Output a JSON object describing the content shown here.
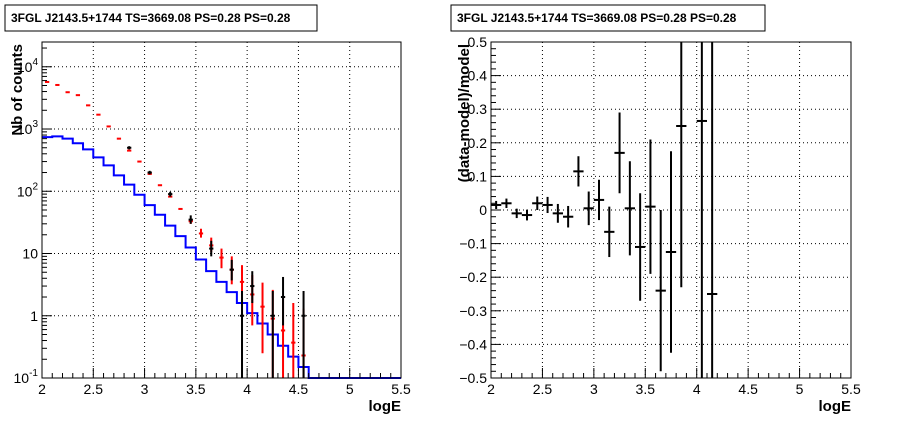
{
  "chart_data": [
    {
      "type": "line",
      "title": "3FGL J2143.5+1744 TS=3669.08 PS=0.28 PS=0.28",
      "xlabel": "logE",
      "ylabel": "Nb of counts",
      "xlim": [
        2,
        5.5
      ],
      "ylim": [
        0.1,
        25000
      ],
      "yscale": "log",
      "grid": true,
      "x_ticks": [
        "2",
        "2.5",
        "3",
        "3.5",
        "4",
        "4.5",
        "5",
        "5.5"
      ],
      "y_ticks": [
        {
          "value": 0.1,
          "base": "10",
          "exp": "-1"
        },
        {
          "value": 1,
          "base": "1",
          "exp": ""
        },
        {
          "value": 10,
          "base": "10",
          "exp": ""
        },
        {
          "value": 100,
          "base": "10",
          "exp": "2"
        },
        {
          "value": 1000,
          "base": "10",
          "exp": "3"
        },
        {
          "value": 10000,
          "base": "10",
          "exp": "4"
        }
      ],
      "series": [
        {
          "name": "",
          "kind": "model-step",
          "color": "#0000ff",
          "bin_edges": [
            2.0,
            2.1,
            2.2,
            2.3,
            2.4,
            2.5,
            2.6,
            2.7,
            2.8,
            2.9,
            3.0,
            3.1,
            3.2,
            3.3,
            3.4,
            3.5,
            3.6,
            3.7,
            3.8,
            3.9,
            4.0,
            4.1,
            4.2,
            4.3,
            4.4,
            4.5,
            4.6,
            4.7,
            4.8,
            4.9,
            5.0,
            5.1,
            5.2,
            5.3,
            5.4,
            5.5
          ],
          "values": [
            740,
            760,
            700,
            590,
            470,
            350,
            260,
            180,
            128,
            88,
            60,
            42,
            28,
            19,
            12.5,
            8,
            5.2,
            3.5,
            2.4,
            1.6,
            1.1,
            0.75,
            0.5,
            0.33,
            0.22,
            0.15,
            0.1,
            0.1,
            0.1,
            0.1,
            0.1,
            0.1,
            0.1,
            0.1,
            0.1
          ]
        },
        {
          "name": "",
          "kind": "points-with-errors",
          "color": "#ff0000",
          "x": [
            2.05,
            2.15,
            2.25,
            2.35,
            2.45,
            2.55,
            2.65,
            2.75,
            2.85,
            2.95,
            3.05,
            3.15,
            3.25,
            3.35,
            3.45,
            3.55,
            3.65,
            3.75,
            3.85,
            3.95,
            4.05,
            4.15,
            4.25,
            4.35,
            4.45,
            4.55
          ],
          "y": [
            5700,
            5100,
            3900,
            3500,
            2400,
            1700,
            1100,
            700,
            450,
            300,
            190,
            125,
            82,
            52,
            33,
            21,
            13.5,
            8.6,
            5.5,
            3.5,
            2.2,
            1.4,
            0.9,
            0.58,
            0.37,
            0.23
          ],
          "y_low": [
            5700,
            5100,
            3900,
            3500,
            2400,
            1700,
            1100,
            700,
            450,
            300,
            190,
            125,
            82,
            52,
            30,
            18,
            10.5,
            5.8,
            3.2,
            1.6,
            0.7,
            0.25,
            0.1,
            0.1,
            0.1,
            0.1
          ],
          "y_high": [
            5700,
            5100,
            3900,
            3500,
            2400,
            1700,
            1100,
            700,
            450,
            300,
            190,
            125,
            82,
            52,
            36,
            25,
            18,
            12,
            9,
            6.5,
            4.5,
            3.4,
            2.6,
            2.0,
            1.6,
            1.3
          ]
        },
        {
          "name": "",
          "kind": "points-with-errors",
          "color": "#000000",
          "x": [
            2.85,
            3.05,
            3.25,
            3.45,
            3.65,
            3.85,
            3.95,
            4.05,
            4.25,
            4.35,
            4.55
          ],
          "y": [
            500,
            200,
            90,
            35,
            12,
            5.5,
            1,
            3,
            1,
            2,
            1
          ],
          "y_low": [
            470,
            187,
            82,
            30,
            9,
            3.7,
            0.1,
            1.6,
            0.1,
            0.7,
            0.1
          ],
          "y_high": [
            530,
            213,
            98,
            41,
            16,
            7.9,
            2.5,
            5.2,
            2.5,
            4.2,
            2.5
          ]
        }
      ]
    },
    {
      "type": "scatter",
      "title": "3FGL J2143.5+1744 TS=3669.08 PS=0.28 PS=0.28",
      "xlabel": "logE",
      "ylabel": "(data-model)/model",
      "xlim": [
        2,
        5.5
      ],
      "ylim": [
        -0.5,
        0.5
      ],
      "grid": true,
      "x_ticks": [
        "2",
        "2.5",
        "3",
        "3.5",
        "4",
        "4.5",
        "5",
        "5.5"
      ],
      "y_ticks": [
        "−0.5",
        "−0.4",
        "−0.3",
        "−0.2",
        "−0.1",
        "0",
        "0.1",
        "0.2",
        "0.3",
        "0.4",
        "0.5"
      ],
      "series": [
        {
          "name": "",
          "color": "#000000",
          "x": [
            2.05,
            2.15,
            2.25,
            2.35,
            2.45,
            2.55,
            2.65,
            2.75,
            2.85,
            2.95,
            3.05,
            3.15,
            3.25,
            3.35,
            3.45,
            3.55,
            3.65,
            3.75,
            3.85,
            4.05,
            4.15
          ],
          "y": [
            0.015,
            0.02,
            -0.01,
            -0.015,
            0.02,
            0.015,
            -0.01,
            -0.02,
            0.115,
            0.005,
            0.03,
            -0.065,
            0.17,
            0.005,
            -0.11,
            0.01,
            -0.24,
            -0.125,
            0.25,
            0.265,
            -0.25
          ],
          "err": [
            0.012,
            0.014,
            0.014,
            0.016,
            0.02,
            0.024,
            0.028,
            0.032,
            0.045,
            0.05,
            0.06,
            0.075,
            0.12,
            0.14,
            0.16,
            0.2,
            0.24,
            0.3,
            0.48,
            0.8,
            0.8
          ],
          "xerr": 0.05
        }
      ]
    }
  ]
}
